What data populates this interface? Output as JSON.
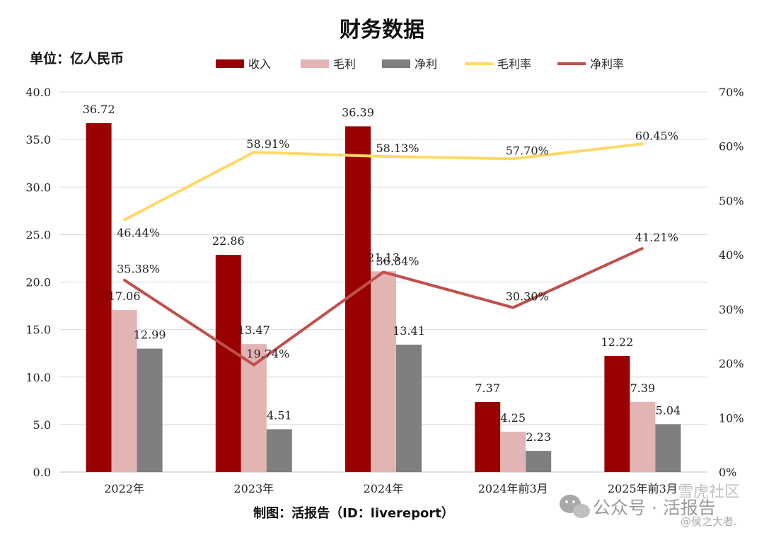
{
  "chart_data": {
    "type": "bar",
    "title": "财务数据",
    "unit_label": "单位：亿人民币",
    "credit": "制图：活报告（ID：livereport）",
    "watermark_text": "公众号 · 活报告",
    "watermark_sub": "@侯之大者.",
    "watermark_site": "雪虎社区",
    "categories": [
      "2022年",
      "2023年",
      "2024年",
      "2024年前3月",
      "2025年前3月"
    ],
    "left_axis": {
      "ylim": [
        0,
        40
      ],
      "ticks": [
        "0.0",
        "5.0",
        "10.0",
        "15.0",
        "20.0",
        "25.0",
        "30.0",
        "35.0",
        "40.0"
      ]
    },
    "right_axis": {
      "ylim": [
        0,
        70
      ],
      "ticks": [
        "0%",
        "10%",
        "20%",
        "30%",
        "40%",
        "50%",
        "60%",
        "70%"
      ]
    },
    "grid": true,
    "legend_position": "top",
    "bar_series": [
      {
        "name": "收入",
        "color": "#990000",
        "values": [
          36.72,
          22.86,
          36.39,
          7.37,
          12.22
        ],
        "labels": [
          "36.72",
          "22.86",
          "36.39",
          "7.37",
          "12.22"
        ]
      },
      {
        "name": "毛利",
        "color": "#e2b4b3",
        "values": [
          17.06,
          13.47,
          21.13,
          4.25,
          7.39
        ],
        "labels": [
          "17.06",
          "13.47",
          "21.13",
          "4.25",
          "7.39"
        ]
      },
      {
        "name": "净利",
        "color": "#7f7f7f",
        "values": [
          12.99,
          4.51,
          13.41,
          2.23,
          5.04
        ],
        "labels": [
          "12.99",
          "4.51",
          "13.41",
          "2.23",
          "5.04"
        ]
      }
    ],
    "line_series": [
      {
        "name": "毛利率",
        "color": "#ffd966",
        "values": [
          46.44,
          58.91,
          58.13,
          57.7,
          60.45
        ],
        "labels": [
          "46.44%",
          "58.91%",
          "58.13%",
          "57.70%",
          "60.45%"
        ]
      },
      {
        "name": "净利率",
        "color": "#c0504d",
        "values": [
          35.38,
          19.74,
          36.84,
          30.3,
          41.21
        ],
        "labels": [
          "35.38%",
          "19.74%",
          "36.84%",
          "30.30%",
          "41.21%"
        ]
      }
    ]
  }
}
